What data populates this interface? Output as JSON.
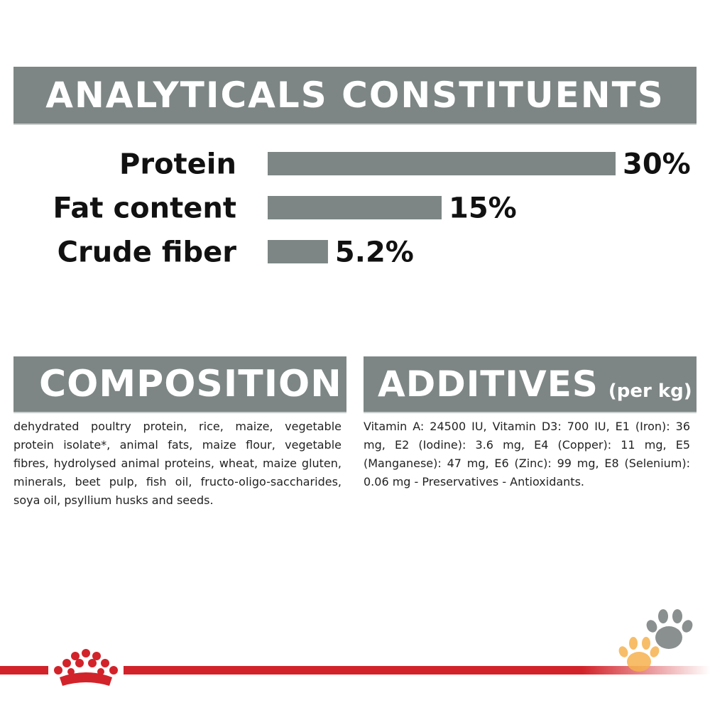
{
  "sections": {
    "analytics_title": "ANALYTICALS CONSTITUENTS",
    "composition_title": "COMPOSITION",
    "additives_title": "ADDITIVES",
    "additives_unit": "(per kg)"
  },
  "chart_data": {
    "type": "bar",
    "orientation": "horizontal",
    "categories": [
      "Protein",
      "Fat content",
      "Crude fiber"
    ],
    "values": [
      30,
      15,
      5.2
    ],
    "value_labels": [
      "30%",
      "15%",
      "5.2%"
    ],
    "unit": "%",
    "xlim": [
      0,
      30
    ],
    "bar_color": "#7d8685",
    "grid": false,
    "legend": "none"
  },
  "composition_text": "dehydrated poultry protein, rice, maize, vegetable protein isolate*, animal fats, maize flour, vegetable fibres, hydrolysed animal proteins, wheat, maize gluten, minerals, beet pulp, fish oil, fructo-oligo-saccharides, soya oil, psyllium husks and seeds.",
  "additives_text": "Vitamin A: 24500 IU, Vitamin D3: 700 IU, E1 (Iron): 36 mg, E2 (Iodine): 3.6 mg, E4 (Copper): 11 mg, E5 (Manganese): 47 mg, E6 (Zinc): 99 mg, E8 (Selenium): 0.06 mg - Preservatives - Antioxidants.",
  "colors": {
    "banner": "#7d8685",
    "brand_red": "#d2232a",
    "paw_grey": "#8a8f8f",
    "paw_orange": "#f6b24e"
  },
  "icons": {
    "logo": "royal-canin-crown-logo",
    "paws": "paw-prints-icon"
  }
}
